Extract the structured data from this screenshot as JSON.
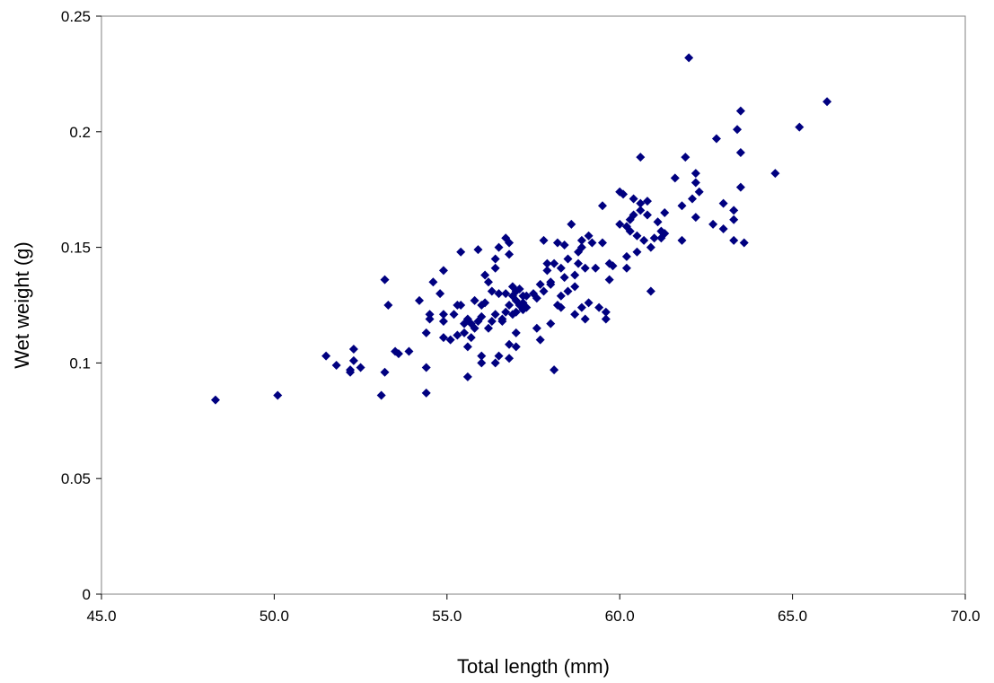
{
  "chart_data": {
    "type": "scatter",
    "title": "",
    "xlabel": "Total length (mm)",
    "ylabel": "Wet weight (g)",
    "xlim": [
      45,
      70
    ],
    "ylim": [
      0,
      0.25
    ],
    "x_ticks": [
      "45.0",
      "50.0",
      "55.0",
      "60.0",
      "65.0",
      "70.0"
    ],
    "y_ticks": [
      "0",
      "0.05",
      "0.1",
      "0.15",
      "0.2",
      "0.25"
    ],
    "grid": false,
    "legend": "none",
    "marker": "diamond",
    "marker_color": "#000080",
    "series": [
      {
        "points": [
          [
            48.3,
            0.084
          ],
          [
            50.1,
            0.086
          ],
          [
            51.5,
            0.103
          ],
          [
            51.8,
            0.099
          ],
          [
            52.2,
            0.097
          ],
          [
            52.3,
            0.101
          ],
          [
            52.3,
            0.106
          ],
          [
            52.5,
            0.098
          ],
          [
            52.2,
            0.096
          ],
          [
            53.1,
            0.086
          ],
          [
            53.2,
            0.096
          ],
          [
            53.2,
            0.136
          ],
          [
            53.3,
            0.125
          ],
          [
            53.5,
            0.105
          ],
          [
            53.6,
            0.104
          ],
          [
            53.9,
            0.105
          ],
          [
            54.2,
            0.127
          ],
          [
            54.4,
            0.087
          ],
          [
            54.4,
            0.098
          ],
          [
            54.4,
            0.113
          ],
          [
            54.5,
            0.121
          ],
          [
            54.5,
            0.119
          ],
          [
            54.6,
            0.135
          ],
          [
            54.8,
            0.13
          ],
          [
            54.9,
            0.121
          ],
          [
            54.9,
            0.118
          ],
          [
            54.9,
            0.14
          ],
          [
            54.9,
            0.111
          ],
          [
            55.1,
            0.11
          ],
          [
            55.2,
            0.121
          ],
          [
            55.3,
            0.125
          ],
          [
            55.3,
            0.112
          ],
          [
            55.4,
            0.148
          ],
          [
            55.4,
            0.125
          ],
          [
            55.5,
            0.113
          ],
          [
            55.5,
            0.117
          ],
          [
            55.6,
            0.107
          ],
          [
            55.6,
            0.094
          ],
          [
            55.6,
            0.119
          ],
          [
            55.7,
            0.117
          ],
          [
            55.7,
            0.111
          ],
          [
            55.8,
            0.127
          ],
          [
            55.8,
            0.115
          ],
          [
            55.9,
            0.118
          ],
          [
            55.9,
            0.149
          ],
          [
            56.0,
            0.1
          ],
          [
            56.0,
            0.103
          ],
          [
            56.0,
            0.12
          ],
          [
            56.0,
            0.125
          ],
          [
            56.1,
            0.138
          ],
          [
            56.1,
            0.126
          ],
          [
            56.2,
            0.135
          ],
          [
            56.2,
            0.115
          ],
          [
            56.3,
            0.118
          ],
          [
            56.3,
            0.131
          ],
          [
            56.4,
            0.121
          ],
          [
            56.4,
            0.1
          ],
          [
            56.4,
            0.141
          ],
          [
            56.4,
            0.145
          ],
          [
            56.5,
            0.15
          ],
          [
            56.5,
            0.103
          ],
          [
            56.5,
            0.13
          ],
          [
            56.6,
            0.118
          ],
          [
            56.6,
            0.119
          ],
          [
            56.7,
            0.154
          ],
          [
            56.7,
            0.13
          ],
          [
            56.7,
            0.122
          ],
          [
            56.8,
            0.125
          ],
          [
            56.8,
            0.147
          ],
          [
            56.8,
            0.152
          ],
          [
            56.8,
            0.108
          ],
          [
            56.8,
            0.102
          ],
          [
            56.9,
            0.133
          ],
          [
            56.9,
            0.121
          ],
          [
            56.9,
            0.129
          ],
          [
            57.0,
            0.122
          ],
          [
            57.0,
            0.131
          ],
          [
            57.0,
            0.107
          ],
          [
            57.0,
            0.113
          ],
          [
            57.0,
            0.127
          ],
          [
            57.1,
            0.125
          ],
          [
            57.1,
            0.132
          ],
          [
            57.2,
            0.129
          ],
          [
            57.2,
            0.123
          ],
          [
            57.2,
            0.126
          ],
          [
            57.3,
            0.124
          ],
          [
            57.3,
            0.129
          ],
          [
            57.5,
            0.13
          ],
          [
            57.6,
            0.115
          ],
          [
            57.6,
            0.128
          ],
          [
            57.7,
            0.11
          ],
          [
            57.7,
            0.134
          ],
          [
            57.8,
            0.153
          ],
          [
            57.8,
            0.131
          ],
          [
            57.9,
            0.143
          ],
          [
            57.9,
            0.14
          ],
          [
            58.0,
            0.135
          ],
          [
            58.0,
            0.117
          ],
          [
            58.0,
            0.134
          ],
          [
            58.1,
            0.097
          ],
          [
            58.1,
            0.143
          ],
          [
            58.2,
            0.152
          ],
          [
            58.2,
            0.125
          ],
          [
            58.3,
            0.124
          ],
          [
            58.3,
            0.129
          ],
          [
            58.3,
            0.141
          ],
          [
            58.4,
            0.137
          ],
          [
            58.4,
            0.151
          ],
          [
            58.5,
            0.145
          ],
          [
            58.5,
            0.131
          ],
          [
            58.6,
            0.16
          ],
          [
            58.7,
            0.138
          ],
          [
            58.7,
            0.133
          ],
          [
            58.7,
            0.121
          ],
          [
            58.8,
            0.148
          ],
          [
            58.8,
            0.143
          ],
          [
            58.9,
            0.15
          ],
          [
            58.9,
            0.124
          ],
          [
            58.9,
            0.153
          ],
          [
            59.0,
            0.119
          ],
          [
            59.0,
            0.141
          ],
          [
            59.1,
            0.155
          ],
          [
            59.1,
            0.126
          ],
          [
            59.2,
            0.152
          ],
          [
            59.3,
            0.141
          ],
          [
            59.4,
            0.124
          ],
          [
            59.5,
            0.168
          ],
          [
            59.5,
            0.152
          ],
          [
            59.6,
            0.119
          ],
          [
            59.6,
            0.122
          ],
          [
            59.7,
            0.143
          ],
          [
            59.7,
            0.136
          ],
          [
            59.8,
            0.142
          ],
          [
            60.0,
            0.174
          ],
          [
            60.0,
            0.16
          ],
          [
            60.1,
            0.173
          ],
          [
            60.2,
            0.146
          ],
          [
            60.2,
            0.141
          ],
          [
            60.2,
            0.159
          ],
          [
            60.3,
            0.157
          ],
          [
            60.3,
            0.162
          ],
          [
            60.4,
            0.171
          ],
          [
            60.4,
            0.164
          ],
          [
            60.5,
            0.148
          ],
          [
            60.5,
            0.155
          ],
          [
            60.6,
            0.166
          ],
          [
            60.6,
            0.189
          ],
          [
            60.6,
            0.169
          ],
          [
            60.7,
            0.153
          ],
          [
            60.8,
            0.17
          ],
          [
            60.8,
            0.164
          ],
          [
            60.9,
            0.15
          ],
          [
            60.9,
            0.131
          ],
          [
            61.0,
            0.154
          ],
          [
            61.1,
            0.161
          ],
          [
            61.2,
            0.154
          ],
          [
            61.2,
            0.157
          ],
          [
            61.3,
            0.165
          ],
          [
            61.3,
            0.156
          ],
          [
            61.6,
            0.18
          ],
          [
            61.8,
            0.168
          ],
          [
            61.8,
            0.153
          ],
          [
            61.9,
            0.189
          ],
          [
            62.0,
            0.232
          ],
          [
            62.1,
            0.171
          ],
          [
            62.2,
            0.182
          ],
          [
            62.2,
            0.178
          ],
          [
            62.2,
            0.163
          ],
          [
            62.3,
            0.174
          ],
          [
            62.7,
            0.16
          ],
          [
            62.8,
            0.197
          ],
          [
            63.0,
            0.169
          ],
          [
            63.0,
            0.158
          ],
          [
            63.3,
            0.166
          ],
          [
            63.3,
            0.162
          ],
          [
            63.3,
            0.153
          ],
          [
            63.4,
            0.201
          ],
          [
            63.5,
            0.209
          ],
          [
            63.5,
            0.191
          ],
          [
            63.5,
            0.176
          ],
          [
            63.6,
            0.152
          ],
          [
            64.5,
            0.182
          ],
          [
            65.2,
            0.202
          ],
          [
            66.0,
            0.213
          ]
        ]
      }
    ]
  }
}
